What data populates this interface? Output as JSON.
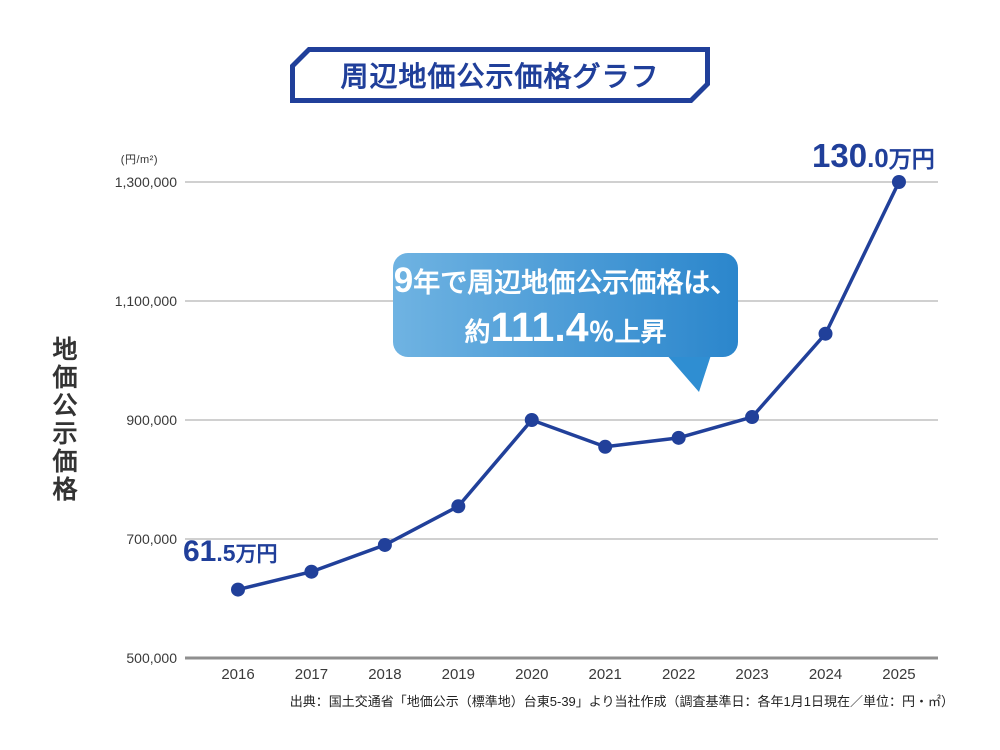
{
  "title": "周辺地価公示価格グラフ",
  "y_axis": {
    "unit_label": "(円/m²)",
    "vertical_label": "地価公示価格"
  },
  "annotation_bubble": {
    "line1_lead": "9",
    "line1_rest": "年で周辺地価公示価格は、",
    "line2_prefix": "約",
    "line2_value": "111.4",
    "line2_suffix": "％上昇"
  },
  "point_labels": {
    "first": {
      "big": "61",
      "small": ".5",
      "unit": "万円"
    },
    "last": {
      "big": "130",
      "small": ".0",
      "unit": "万円"
    }
  },
  "source_note": "出典：国土交通省「地価公示（標準地）台東5-39」より当社作成（調査基準日：各年1月1日現在／単位：円・㎡）",
  "colors": {
    "navy": "#203f9a",
    "line": "#21409a",
    "grid": "#b5b5b5",
    "axis": "#8f8f8f",
    "bubble_start": "#6fb3e2",
    "bubble_end": "#2b86cc",
    "text_dark": "#3a3a3a"
  },
  "chart_data": {
    "type": "line",
    "title": "周辺地価公示価格グラフ",
    "x": [
      "2016",
      "2017",
      "2018",
      "2019",
      "2020",
      "2021",
      "2022",
      "2023",
      "2024",
      "2025"
    ],
    "values": [
      615000,
      645000,
      690000,
      755000,
      900000,
      855000,
      870000,
      905000,
      1045000,
      1300000
    ],
    "ylabel": "地価公示価格",
    "y_unit": "円/m²",
    "ylim": [
      500000,
      1300000
    ],
    "yticks": [
      500000,
      700000,
      900000,
      1100000,
      1300000
    ],
    "ytick_labels": [
      "500,000",
      "700,000",
      "900,000",
      "1,100,000",
      "1,300,000"
    ],
    "grid": "horizontal",
    "legend": false,
    "line_color": "#21409a",
    "annotations": [
      "2016: 61.5万円",
      "2025: 130.0万円",
      "9年で周辺地価公示価格は、約111.4％上昇"
    ]
  }
}
